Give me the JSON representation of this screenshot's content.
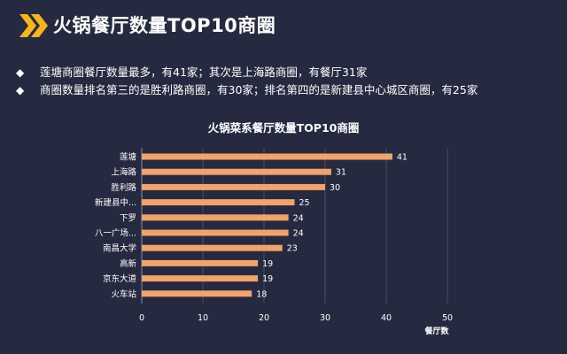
{
  "header": {
    "title": "火锅餐厅数量TOP10商圈",
    "accent_color": "#f4b61a",
    "icon": "double-chevron-right-icon"
  },
  "bullets": [
    {
      "marker": "◆",
      "text": "莲塘商圈餐厅数量最多，有41家；其次是上海路商圈，有餐厅31家"
    },
    {
      "marker": "◆",
      "text": "商圈数量排名第三的是胜利路商圈，有30家；排名第四的是新建县中心城区商圈，有25家"
    }
  ],
  "chart_data": {
    "type": "bar",
    "orientation": "horizontal",
    "title": "火锅菜系餐厅数量TOP10商圈",
    "xlabel": "餐厅数",
    "ylabel": "",
    "categories": [
      "莲塘",
      "上海路",
      "胜利路",
      "新建县中...",
      "下罗",
      "八一广场...",
      "南昌大学",
      "高新",
      "京东大道",
      "火车站"
    ],
    "values": [
      41,
      31,
      30,
      25,
      24,
      24,
      23,
      19,
      19,
      18
    ],
    "xlim": [
      0,
      50
    ],
    "xticks": [
      0,
      10,
      20,
      30,
      40,
      50
    ],
    "bar_color": "#f0a36b",
    "grid": true,
    "data_labels": true
  }
}
